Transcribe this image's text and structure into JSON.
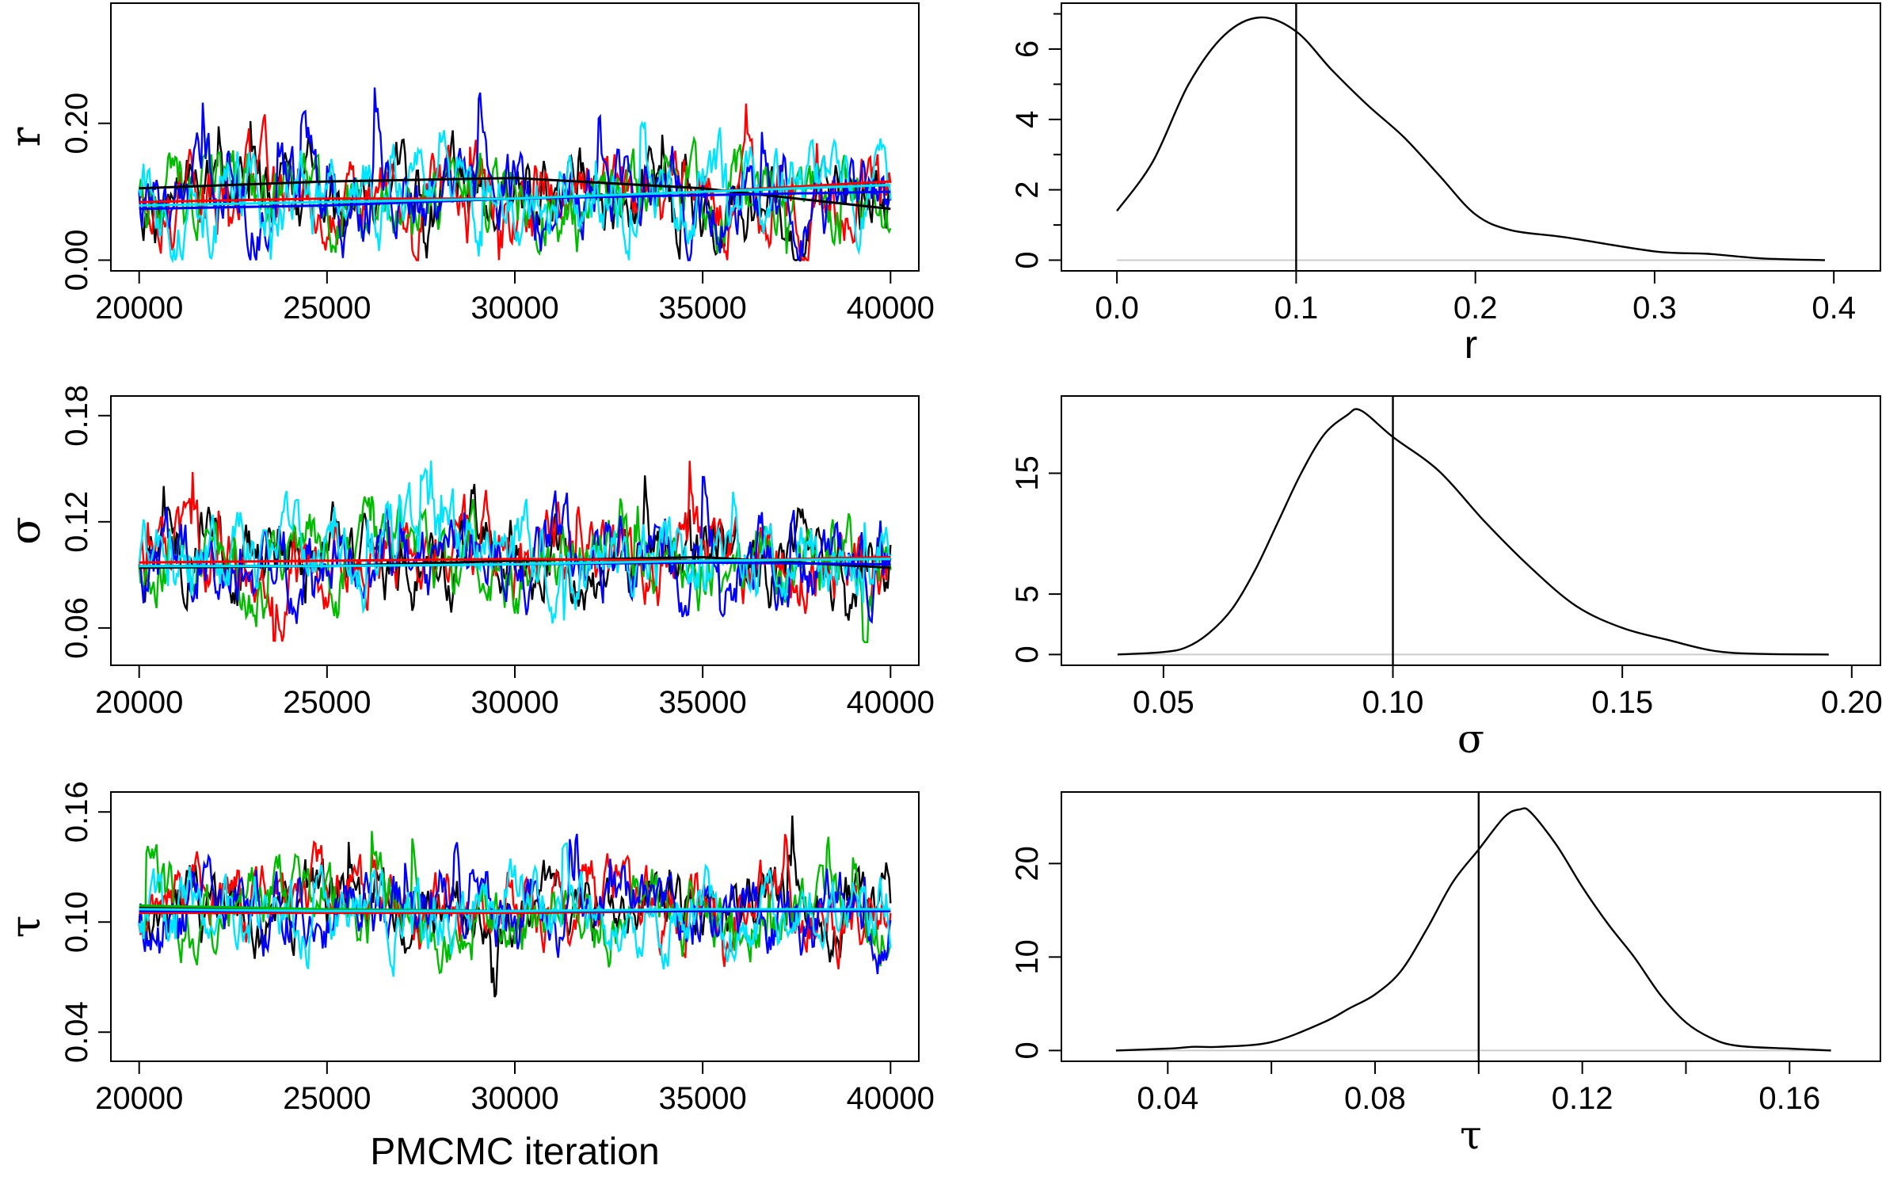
{
  "figure": {
    "xlabel_bottom": "PMCMC iteration",
    "chain_colors": [
      "#000000",
      "#ff0000",
      "#00bb00",
      "#0000ff",
      "#00e5ff"
    ]
  },
  "chart_data": [
    {
      "type": "line",
      "panel": "trace",
      "parameter": "r",
      "ylabel": "r",
      "xlim": [
        20000,
        40000
      ],
      "ylim": [
        0,
        0.36
      ],
      "xticks": [
        20000,
        25000,
        30000,
        35000,
        40000
      ],
      "yticks": [
        0.0,
        0.2
      ],
      "ytick_labels": [
        "0.00",
        "0.20"
      ],
      "grid": false,
      "smooth_trends": [
        {
          "color": "#000000",
          "x": [
            20000,
            25000,
            30000,
            35000,
            40000
          ],
          "y": [
            0.105,
            0.115,
            0.12,
            0.105,
            0.075
          ]
        },
        {
          "color": "#ff0000",
          "x": [
            20000,
            25000,
            30000,
            35000,
            40000
          ],
          "y": [
            0.085,
            0.09,
            0.09,
            0.1,
            0.115
          ]
        },
        {
          "color": "#00bb00",
          "x": [
            20000,
            25000,
            30000,
            35000,
            40000
          ],
          "y": [
            0.075,
            0.08,
            0.09,
            0.1,
            0.11
          ]
        },
        {
          "color": "#0000ff",
          "x": [
            20000,
            25000,
            30000,
            35000,
            40000
          ],
          "y": [
            0.075,
            0.08,
            0.09,
            0.095,
            0.1
          ]
        },
        {
          "color": "#00e5ff",
          "x": [
            20000,
            25000,
            30000,
            35000,
            40000
          ],
          "y": [
            0.08,
            0.085,
            0.09,
            0.1,
            0.11
          ]
        }
      ],
      "trace_noise": {
        "center": 0.09,
        "amp": 0.13,
        "min": 0.0,
        "max": 0.36
      }
    },
    {
      "type": "line",
      "panel": "density",
      "parameter": "r",
      "xlabel": "r",
      "xlim": [
        -0.015,
        0.41
      ],
      "ylim": [
        0,
        7
      ],
      "xticks": [
        0.0,
        0.1,
        0.2,
        0.3,
        0.4
      ],
      "xtick_labels": [
        "0.0",
        "0.1",
        "0.2",
        "0.3",
        "0.4"
      ],
      "yticks": [
        0,
        2,
        4,
        6
      ],
      "true_value": 0.1,
      "grid": false,
      "x": [
        0.0,
        0.02,
        0.04,
        0.06,
        0.08,
        0.1,
        0.12,
        0.14,
        0.16,
        0.18,
        0.2,
        0.22,
        0.25,
        0.3,
        0.33,
        0.36,
        0.395
      ],
      "y": [
        1.4,
        2.8,
        5.0,
        6.4,
        6.9,
        6.5,
        5.4,
        4.4,
        3.5,
        2.4,
        1.3,
        0.85,
        0.65,
        0.25,
        0.18,
        0.05,
        0.0
      ]
    },
    {
      "type": "line",
      "panel": "trace",
      "parameter": "σ",
      "ylabel": "σ",
      "xlim": [
        20000,
        40000
      ],
      "ylim": [
        0.045,
        0.185
      ],
      "xticks": [
        20000,
        25000,
        30000,
        35000,
        40000
      ],
      "yticks": [
        0.06,
        0.12,
        0.18
      ],
      "ytick_labels": [
        "0.06",
        "0.12",
        "0.18"
      ],
      "grid": false,
      "smooth_trends": [
        {
          "color": "#000000",
          "x": [
            20000,
            25000,
            30000,
            35000,
            40000
          ],
          "y": [
            0.094,
            0.095,
            0.098,
            0.1,
            0.094
          ]
        },
        {
          "color": "#ff0000",
          "x": [
            20000,
            25000,
            30000,
            35000,
            40000
          ],
          "y": [
            0.097,
            0.098,
            0.099,
            0.098,
            0.1
          ]
        },
        {
          "color": "#00bb00",
          "x": [
            20000,
            25000,
            30000,
            35000,
            40000
          ],
          "y": [
            0.095,
            0.095,
            0.096,
            0.098,
            0.099
          ]
        },
        {
          "color": "#0000ff",
          "x": [
            20000,
            25000,
            30000,
            35000,
            40000
          ],
          "y": [
            0.095,
            0.095,
            0.096,
            0.097,
            0.096
          ]
        },
        {
          "color": "#00e5ff",
          "x": [
            20000,
            25000,
            30000,
            35000,
            40000
          ],
          "y": [
            0.095,
            0.095,
            0.096,
            0.098,
            0.099
          ]
        }
      ],
      "trace_noise": {
        "center": 0.097,
        "amp": 0.05,
        "min": 0.052,
        "max": 0.18
      }
    },
    {
      "type": "line",
      "panel": "density",
      "parameter": "σ",
      "xlabel": "σ",
      "xlim": [
        0.034,
        0.2
      ],
      "ylim": [
        0,
        20.5
      ],
      "xticks": [
        0.05,
        0.1,
        0.15,
        0.2
      ],
      "xtick_labels": [
        "0.05",
        "0.10",
        "0.15",
        "0.20"
      ],
      "yticks": [
        0,
        5,
        15
      ],
      "true_value": 0.1,
      "grid": false,
      "x": [
        0.04,
        0.05,
        0.055,
        0.06,
        0.065,
        0.07,
        0.075,
        0.08,
        0.085,
        0.09,
        0.093,
        0.1,
        0.11,
        0.12,
        0.13,
        0.14,
        0.15,
        0.16,
        0.17,
        0.18,
        0.195
      ],
      "y": [
        0.0,
        0.2,
        0.6,
        1.8,
        3.8,
        7.0,
        11.0,
        15.0,
        18.2,
        19.8,
        20.2,
        18.0,
        15.2,
        11.0,
        7.2,
        4.0,
        2.2,
        1.2,
        0.3,
        0.05,
        0.0
      ]
    },
    {
      "type": "line",
      "panel": "trace",
      "parameter": "τ",
      "ylabel": "τ",
      "xlim": [
        20000,
        40000
      ],
      "ylim": [
        0.03,
        0.165
      ],
      "xticks": [
        20000,
        25000,
        30000,
        35000,
        40000
      ],
      "yticks": [
        0.04,
        0.1,
        0.16
      ],
      "ytick_labels": [
        "0.04",
        "0.10",
        "0.16"
      ],
      "grid": false,
      "smooth_trends": [
        {
          "color": "#000000",
          "x": [
            20000,
            25000,
            30000,
            35000,
            40000
          ],
          "y": [
            0.108,
            0.106,
            0.105,
            0.106,
            0.106
          ]
        },
        {
          "color": "#ff0000",
          "x": [
            20000,
            25000,
            30000,
            35000,
            40000
          ],
          "y": [
            0.105,
            0.105,
            0.105,
            0.106,
            0.106
          ]
        },
        {
          "color": "#00bb00",
          "x": [
            20000,
            25000,
            30000,
            35000,
            40000
          ],
          "y": [
            0.109,
            0.107,
            0.106,
            0.106,
            0.106
          ]
        },
        {
          "color": "#0000ff",
          "x": [
            20000,
            25000,
            30000,
            35000,
            40000
          ],
          "y": [
            0.106,
            0.106,
            0.106,
            0.106,
            0.106
          ]
        },
        {
          "color": "#00e5ff",
          "x": [
            20000,
            25000,
            30000,
            35000,
            40000
          ],
          "y": [
            0.107,
            0.106,
            0.106,
            0.107,
            0.107
          ]
        }
      ],
      "trace_noise": {
        "center": 0.106,
        "amp": 0.045,
        "min": 0.045,
        "max": 0.158
      }
    },
    {
      "type": "line",
      "panel": "density",
      "parameter": "τ",
      "xlabel": "τ",
      "xlim": [
        0.025,
        0.172
      ],
      "ylim": [
        0,
        26.5
      ],
      "xticks": [
        0.04,
        0.06,
        0.08,
        0.1,
        0.12,
        0.14,
        0.16
      ],
      "xtick_labels": [
        "0.04",
        "",
        "0.08",
        "",
        "0.12",
        "",
        "0.16"
      ],
      "yticks": [
        0,
        10,
        20
      ],
      "true_value": 0.1,
      "grid": false,
      "x": [
        0.03,
        0.04,
        0.045,
        0.05,
        0.06,
        0.07,
        0.075,
        0.08,
        0.085,
        0.09,
        0.095,
        0.1,
        0.105,
        0.108,
        0.11,
        0.115,
        0.12,
        0.125,
        0.13,
        0.135,
        0.14,
        0.145,
        0.15,
        0.16,
        0.168
      ],
      "y": [
        0.0,
        0.2,
        0.4,
        0.4,
        0.9,
        3.0,
        4.5,
        6.0,
        8.5,
        13.0,
        18.0,
        21.5,
        25.0,
        25.8,
        25.5,
        22.0,
        17.5,
        13.5,
        10.0,
        6.0,
        3.0,
        1.3,
        0.5,
        0.2,
        0.0
      ]
    }
  ]
}
